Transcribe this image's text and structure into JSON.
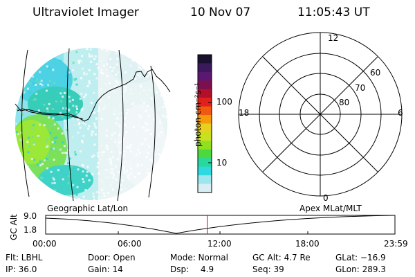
{
  "header": {
    "instrument": "Ultraviolet Imager",
    "date": "10 Nov 07",
    "time": "11:05:43 UT"
  },
  "colorbar": {
    "unit_label": "photon cm⁻²s⁻¹",
    "tick_labels": [
      "100",
      "10"
    ],
    "colors_top_to_bottom": [
      "#1a1030",
      "#3a1a5a",
      "#5a1870",
      "#7a1050",
      "#b0102a",
      "#e0201a",
      "#f05a10",
      "#f59a0a",
      "#e8d020",
      "#c8e020",
      "#8ee020",
      "#4ed840",
      "#28d8a0",
      "#30d8e0",
      "#9de6ee",
      "#d8eef2"
    ]
  },
  "polar_plot": {
    "mlt_labels": {
      "top": "12",
      "left": "18",
      "right": "6",
      "bottom": "0"
    },
    "lat_labels": [
      "60",
      "70",
      "80"
    ]
  },
  "timeline": {
    "ylabel": "GC Alt",
    "ytick_labels": [
      "9.0",
      "1.8"
    ],
    "left_title": "Geographic Lat/Lon",
    "right_title": "Apex  MLat/MLT",
    "xtick_labels": [
      "00:00",
      "06:00",
      "12:00",
      "18:00",
      "23:59"
    ],
    "current_time_fraction": 0.4623,
    "marker_color": "#e00000"
  },
  "status": {
    "row1": {
      "filter": "Flt: LBHL",
      "door": "Door: Open",
      "mode": "Mode: Normal",
      "gc_alt": "GC Alt: 4.7 Re",
      "glat": "GLat: −16.9"
    },
    "row2": {
      "ip": "IP: 36.0",
      "gain": "Gain: 14",
      "dsp_label": "Dsp:",
      "dsp_value": "4.9",
      "seq": "Seq: 39",
      "glon": "GLon: 289.3"
    }
  }
}
